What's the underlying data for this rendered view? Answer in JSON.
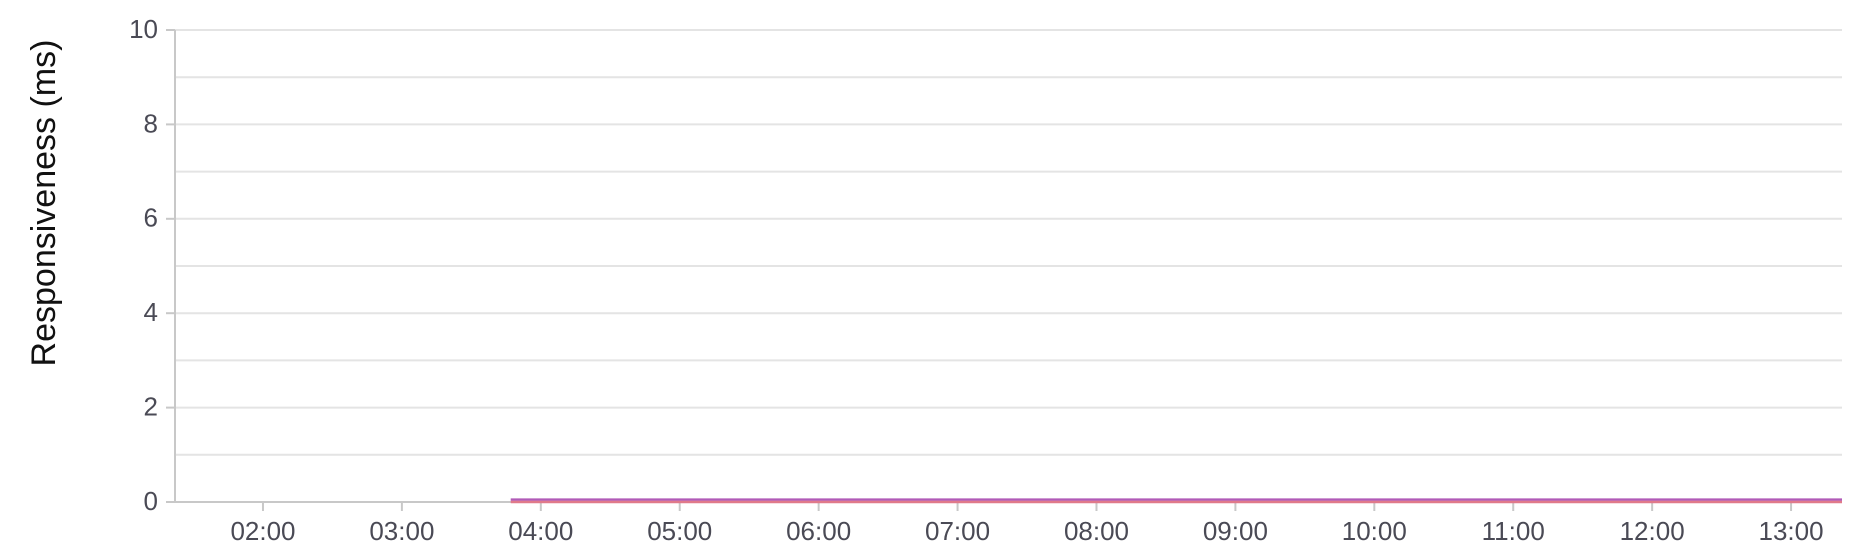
{
  "chart_data": {
    "type": "line",
    "title": "",
    "xlabel": "",
    "ylabel": "Responsiveness (ms)",
    "ylim": [
      0,
      10
    ],
    "y_ticks": [
      "0",
      "2",
      "4",
      "6",
      "8",
      "10"
    ],
    "y_tick_values": [
      0,
      2,
      4,
      6,
      8,
      10
    ],
    "y_minor_gridlines": [
      1,
      3,
      5,
      7,
      9
    ],
    "xlim": [
      "01:22",
      "13:22"
    ],
    "x_ticks": [
      "02:00",
      "03:00",
      "04:00",
      "05:00",
      "06:00",
      "07:00",
      "08:00",
      "09:00",
      "10:00",
      "11:00",
      "12:00",
      "13:00"
    ],
    "grid": true,
    "legend": "none",
    "series": [
      {
        "color": "#b05bb8",
        "x": [
          "03:47",
          "13:22"
        ],
        "y": [
          0.05,
          0.05
        ]
      },
      {
        "color": "#e07a8a",
        "x": [
          "03:47",
          "13:22"
        ],
        "y": [
          0.0,
          0.0
        ]
      }
    ],
    "colors": {
      "gridline": "#e4e4e4",
      "axis": "#c8c8c8",
      "tick_text": "#4a4a55"
    }
  }
}
